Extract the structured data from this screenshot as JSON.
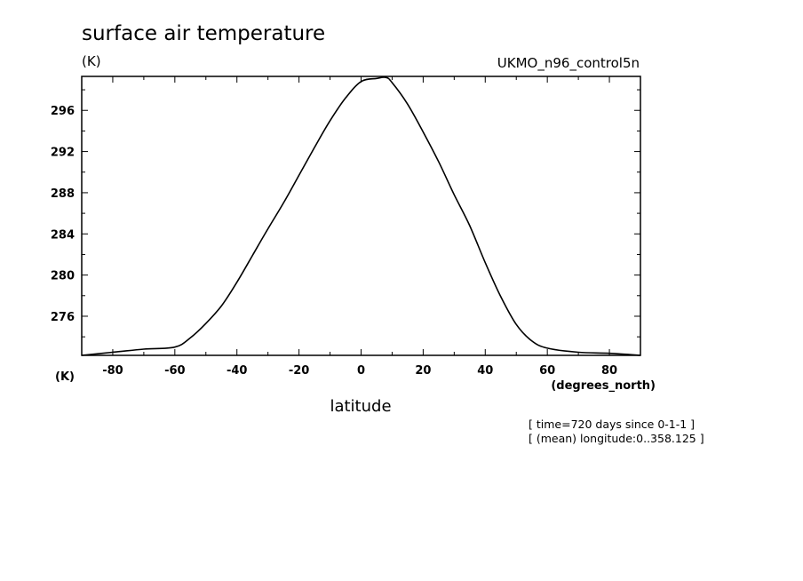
{
  "chart_data": {
    "type": "line",
    "title": "surface air temperature",
    "units": "(K)",
    "model": "UKMO_n96_control5n",
    "xlabel": "latitude",
    "xunits": "(degrees_north)",
    "yunits_bottom": "(K)",
    "xlim": [
      -90,
      90
    ],
    "ylim": [
      272.2,
      299.3
    ],
    "xticks": [
      -80,
      -60,
      -40,
      -20,
      0,
      20,
      40,
      60,
      80
    ],
    "xtick_labels": [
      "-80",
      "-60",
      "-40",
      "-20",
      "0",
      "20",
      "40",
      "60",
      "80"
    ],
    "yticks": [
      276,
      280,
      284,
      288,
      292,
      296
    ],
    "ytick_labels": [
      "276",
      "280",
      "284",
      "288",
      "292",
      "296"
    ],
    "grid": false,
    "series": [
      {
        "x": [
          -90,
          -80,
          -70,
          -60,
          -55,
          -50,
          -45,
          -40,
          -35,
          -30,
          -25,
          -20,
          -15,
          -10,
          -5,
          0,
          5,
          8,
          10,
          15,
          20,
          25,
          30,
          35,
          40,
          45,
          50,
          55,
          60,
          70,
          80,
          90
        ],
        "y": [
          272.2,
          272.5,
          272.8,
          273.0,
          273.9,
          275.3,
          277.0,
          279.3,
          281.9,
          284.5,
          287.0,
          289.7,
          292.4,
          295.0,
          297.2,
          298.8,
          299.1,
          299.2,
          298.7,
          296.6,
          293.9,
          291.0,
          287.8,
          284.8,
          281.2,
          277.9,
          275.2,
          273.6,
          272.9,
          272.5,
          272.4,
          272.2
        ]
      }
    ]
  },
  "notes": [
    "[ time=720 days since 0-1-1 ]",
    "[ (mean) longitude:0..358.125 ]"
  ]
}
